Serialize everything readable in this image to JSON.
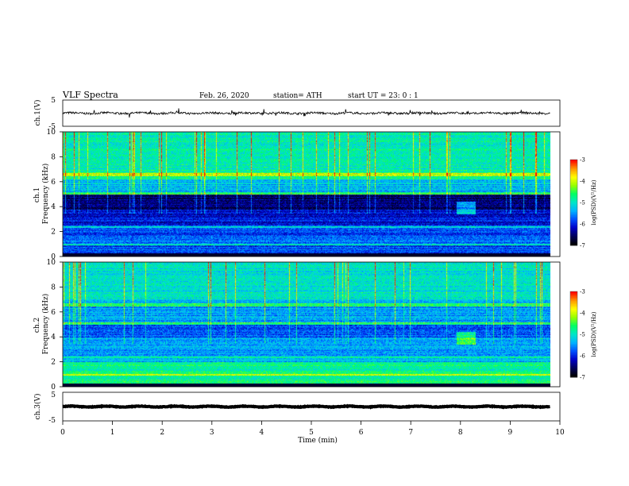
{
  "header": {
    "title": "VLF  Spectra",
    "date": "Feb. 26, 2020",
    "station": "station= ATH",
    "start": "start  UT  =    23: 0   : 1"
  },
  "colors": {
    "colormap": [
      "#000000",
      "#00005a",
      "#0000c8",
      "#0050ff",
      "#00b4ff",
      "#00e6c8",
      "#00ff64",
      "#96ff00",
      "#ffff00",
      "#ff9600",
      "#ff0000",
      "#ffffff"
    ],
    "trace": "#000000"
  },
  "chart_data": [
    {
      "type": "line",
      "name": "ch1-waveform",
      "ylabel": "ch.1(V)",
      "ylim": [
        -5,
        5
      ],
      "yticks": [
        "5",
        "-5"
      ],
      "x_range": [
        0,
        9.8
      ],
      "noise_level_v": 0.4
    },
    {
      "type": "heatmap",
      "name": "ch1-spectrogram",
      "ylabel": "ch.1\nFrequency  (kHz)",
      "ylim": [
        0,
        10
      ],
      "yticks": [
        "0",
        "2",
        "4",
        "6",
        "8",
        "10"
      ],
      "x_range": [
        0,
        9.8
      ],
      "colorbar": {
        "label": "log(PSD)(V²/Hz)",
        "range": [
          -7,
          -3
        ],
        "ticks": [
          "-3",
          "-4",
          "-5",
          "-6",
          "-7"
        ]
      }
    },
    {
      "type": "heatmap",
      "name": "ch2-spectrogram",
      "ylabel": "ch.2\nFrequency  (kHz)",
      "ylim": [
        0,
        10
      ],
      "yticks": [
        "0",
        "2",
        "4",
        "6",
        "8",
        "10"
      ],
      "x_range": [
        0,
        9.8
      ],
      "colorbar": {
        "label": "log(PSD)(V²/Hz)",
        "range": [
          -7,
          -3
        ],
        "ticks": [
          "-3",
          "-4",
          "-5",
          "-6",
          "-7"
        ]
      }
    },
    {
      "type": "line",
      "name": "ch3-waveform",
      "ylabel": "ch.3(V)",
      "ylim": [
        -5,
        5
      ],
      "yticks": [
        "5",
        "-5"
      ],
      "x_range": [
        0,
        9.8
      ],
      "noise_level_v": 0.1
    }
  ],
  "xaxis": {
    "label": "Time  (min)",
    "range": [
      0,
      10
    ],
    "ticks": [
      "0",
      "1",
      "2",
      "3",
      "4",
      "5",
      "6",
      "7",
      "8",
      "9",
      "10"
    ]
  }
}
